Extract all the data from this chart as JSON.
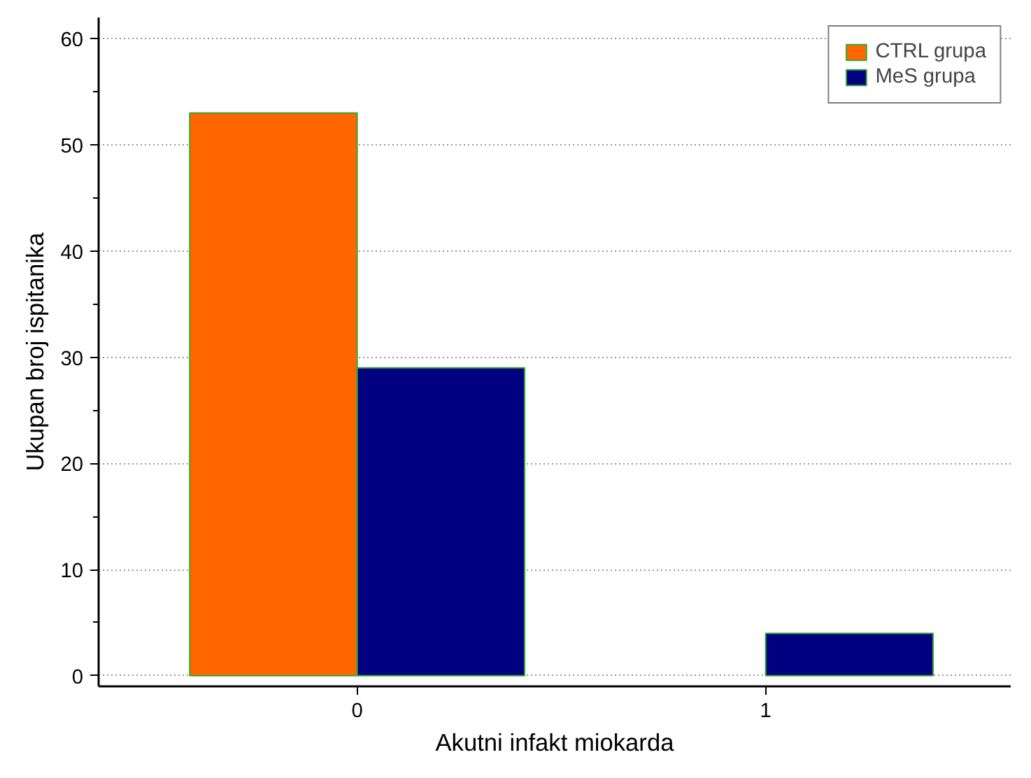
{
  "chart_data": {
    "type": "bar",
    "xlabel": "Akutni infakt miokarda",
    "ylabel": "Ukupan broj ispitanika",
    "categories": [
      "0",
      "1"
    ],
    "series": [
      {
        "name": "CTRL grupa",
        "color": "#ff6600",
        "values": [
          53,
          null
        ]
      },
      {
        "name": "MeS grupa",
        "color": "#000080",
        "values": [
          29,
          4
        ]
      }
    ],
    "ylim": [
      -1,
      62
    ],
    "yticks": [
      0,
      10,
      20,
      30,
      40,
      50,
      60
    ],
    "grid": "y",
    "legend": "top right"
  }
}
